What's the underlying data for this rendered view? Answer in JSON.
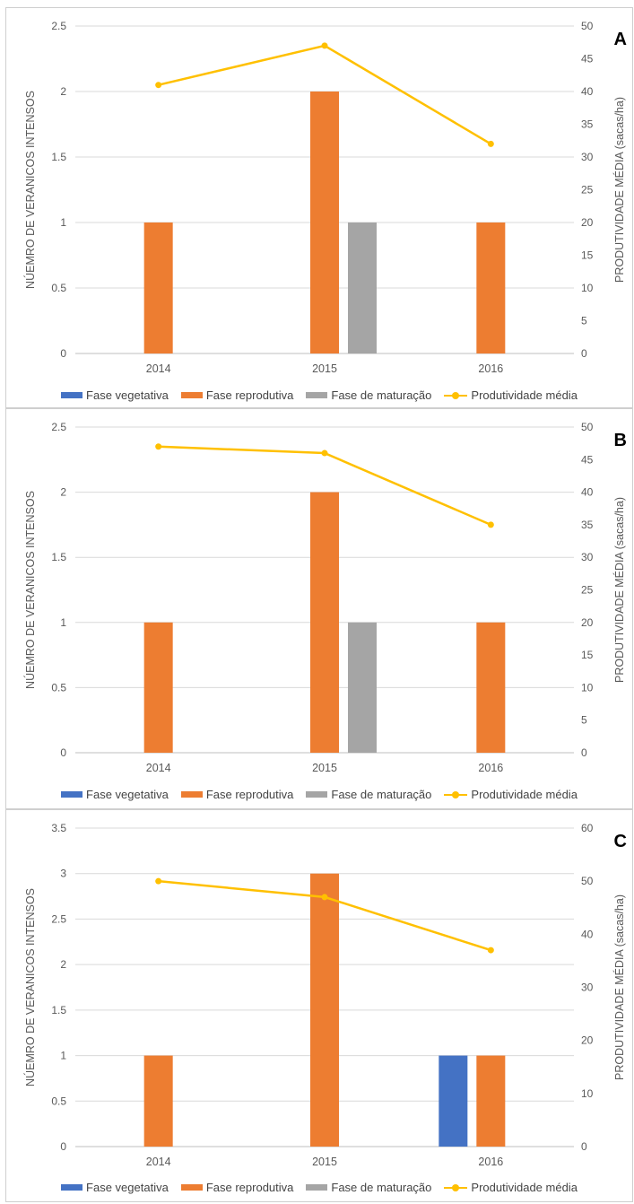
{
  "colors": {
    "vegetativa": "#4472c4",
    "reprodutiva": "#ed7d31",
    "maturacao": "#a5a5a5",
    "produtividade": "#ffc000"
  },
  "legend": {
    "vegetativa": "Fase vegetativa",
    "reprodutiva": "Fase reprodutiva",
    "maturacao": "Fase de maturação",
    "produtividade": "Produtividade média"
  },
  "chart_data": [
    {
      "panel": "A",
      "type": "bar",
      "categories": [
        "2014",
        "2015",
        "2016"
      ],
      "ylabel": "NÚEMRO DE VERANICOS INTENSOS",
      "y2label": "PRODUTIVIDADE MÉDIA (sacas/ha)",
      "ylim": [
        0,
        2.5
      ],
      "yticks": [
        "0",
        "0.5",
        "1",
        "1.5",
        "2",
        "2.5"
      ],
      "y2lim": [
        0,
        50
      ],
      "y2ticks": [
        "0",
        "5",
        "10",
        "15",
        "20",
        "25",
        "30",
        "35",
        "40",
        "45",
        "50"
      ],
      "series": [
        {
          "name": "Fase vegetativa",
          "values": [
            0,
            0,
            0
          ]
        },
        {
          "name": "Fase reprodutiva",
          "values": [
            1,
            2,
            1
          ]
        },
        {
          "name": "Fase de maturação",
          "values": [
            0,
            1,
            0
          ]
        }
      ],
      "line": {
        "name": "Produtividade média",
        "values": [
          41,
          47,
          32
        ]
      }
    },
    {
      "panel": "B",
      "type": "bar",
      "categories": [
        "2014",
        "2015",
        "2016"
      ],
      "ylabel": "NÚEMRO DE VERANICOS INTENSOS",
      "y2label": "PRODUTIVIDADE MÉDIA (sacas/ha)",
      "ylim": [
        0,
        2.5
      ],
      "yticks": [
        "0",
        "0.5",
        "1",
        "1.5",
        "2",
        "2.5"
      ],
      "y2lim": [
        0,
        50
      ],
      "y2ticks": [
        "0",
        "5",
        "10",
        "15",
        "20",
        "25",
        "30",
        "35",
        "40",
        "45",
        "50"
      ],
      "series": [
        {
          "name": "Fase vegetativa",
          "values": [
            0,
            0,
            0
          ]
        },
        {
          "name": "Fase reprodutiva",
          "values": [
            1,
            2,
            1
          ]
        },
        {
          "name": "Fase de maturação",
          "values": [
            0,
            1,
            0
          ]
        }
      ],
      "line": {
        "name": "Produtividade média",
        "values": [
          47,
          46,
          35
        ]
      }
    },
    {
      "panel": "C",
      "type": "bar",
      "categories": [
        "2014",
        "2015",
        "2016"
      ],
      "ylabel": "NÚEMRO DE VERANICOS INTENSOS",
      "y2label": "PRODUTIVIDADE MÉDIA (sacas/ha)",
      "ylim": [
        0,
        3.5
      ],
      "yticks": [
        "0",
        "0.5",
        "1",
        "1.5",
        "2",
        "2.5",
        "3",
        "3.5"
      ],
      "y2lim": [
        0,
        60
      ],
      "y2ticks": [
        "0",
        "10",
        "20",
        "30",
        "40",
        "50",
        "60"
      ],
      "series": [
        {
          "name": "Fase vegetativa",
          "values": [
            0,
            0,
            1
          ]
        },
        {
          "name": "Fase reprodutiva",
          "values": [
            1,
            3,
            1
          ]
        },
        {
          "name": "Fase de maturação",
          "values": [
            0,
            0,
            0
          ]
        }
      ],
      "line": {
        "name": "Produtividade média",
        "values": [
          50,
          47,
          37
        ]
      }
    }
  ]
}
